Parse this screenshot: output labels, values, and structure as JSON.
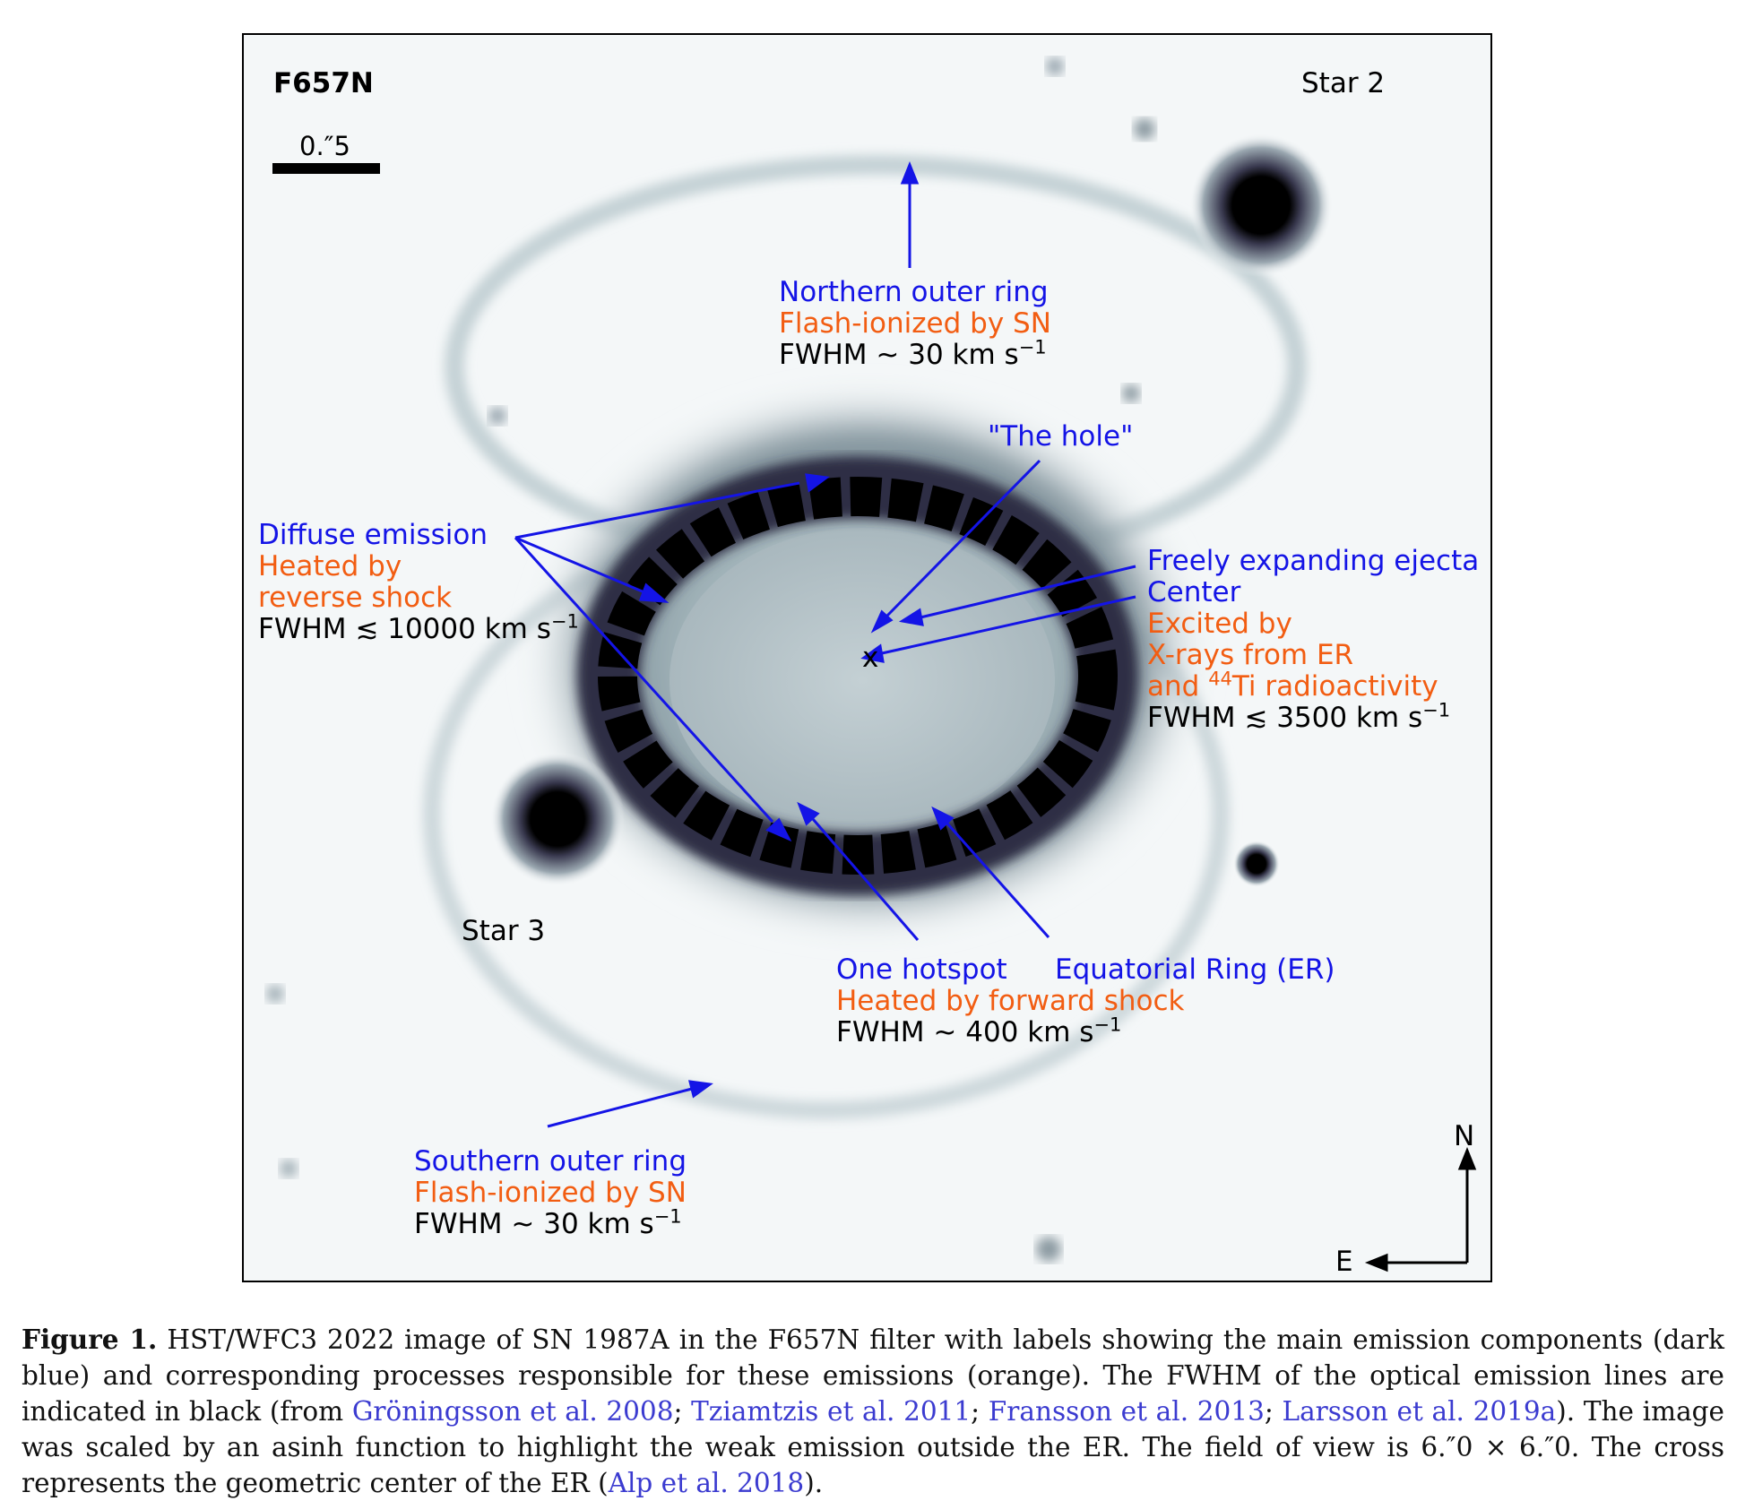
{
  "figure": {
    "filter_label": "F657N",
    "scale_bar_label": "0.″5",
    "star2": "Star 2",
    "star3": "Star 3",
    "compass_n": "N",
    "compass_e": "E",
    "center_mark": "x",
    "colors": {
      "component": "#1414e6",
      "process": "#f25d12",
      "fwhm": "#000000"
    },
    "northern_ring": {
      "component": "Northern outer ring",
      "process": "Flash-ionized by SN",
      "fwhm": "FWHM ~ 30 km s",
      "fwhm_exp": "−1"
    },
    "hole": {
      "component": "\"The hole\""
    },
    "diffuse": {
      "component": "Diffuse emission",
      "process_1": "Heated by",
      "process_2": "reverse shock",
      "fwhm": "FWHM ≲ 10000 km s",
      "fwhm_exp": "−1"
    },
    "ejecta": {
      "component_1": "Freely expanding ejecta",
      "component_2": "Center",
      "process_1": "Excited by",
      "process_2": "X-rays from ER",
      "process_3_pre": "and ",
      "process_3_sup": "44",
      "process_3_post": "Ti radioactivity",
      "fwhm": "FWHM ≲ 3500 km s",
      "fwhm_exp": "−1"
    },
    "hotspot": {
      "component": "One hotspot",
      "process": "Heated by forward shock",
      "fwhm": "FWHM ~ 400 km s",
      "fwhm_exp": "−1"
    },
    "er": {
      "component": "Equatorial Ring (ER)"
    },
    "southern_ring": {
      "component": "Southern outer ring",
      "process": "Flash-ionized by SN",
      "fwhm": "FWHM ~ 30 km s",
      "fwhm_exp": "−1"
    }
  },
  "caption": {
    "label": "Figure 1.",
    "text_1": " HST/WFC3 2022 image of SN 1987A in the F657N filter with labels showing the main emission components (dark blue) and corresponding processes responsible for these emissions (orange). The FWHM of the optical emission lines are indicated in black (from ",
    "ref_1": "Gröningsson et al. 2008",
    "sep_1": "; ",
    "ref_2": "Tziamtzis et al. 2011",
    "sep_2": "; ",
    "ref_3": "Fransson et al. 2013",
    "sep_3": "; ",
    "ref_4": "Larsson et al. 2019a",
    "text_2": "). The image was scaled by an asinh function to highlight the weak emission outside the ER. The field of view is 6.″0 × 6.″0. The cross represents the geometric center of the ER (",
    "ref_5": "Alp et al. 2018",
    "text_3": ")."
  }
}
